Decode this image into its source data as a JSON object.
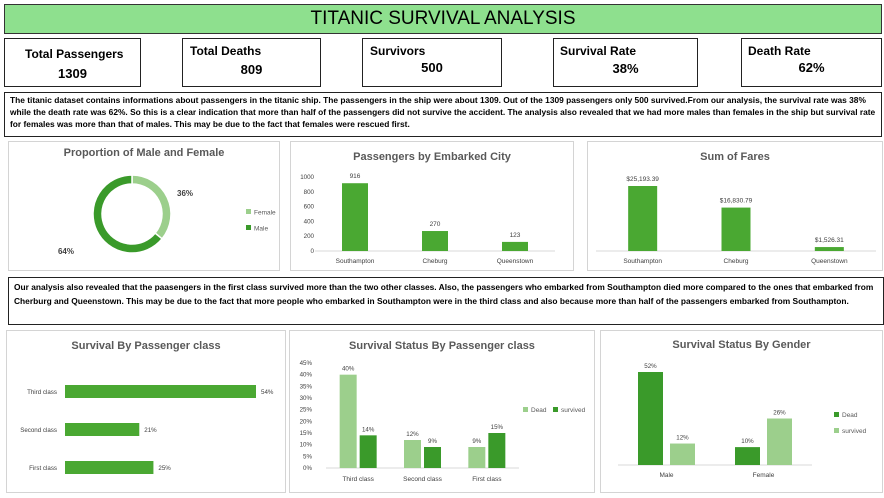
{
  "title": "TITANIC SURVIVAL ANALYSIS",
  "kpis": [
    {
      "label": "Total Passengers",
      "value": "1309"
    },
    {
      "label": "Total Deaths",
      "value": "809"
    },
    {
      "label": "Survivors",
      "value": "500"
    },
    {
      "label": "Survival Rate",
      "value": "38%"
    },
    {
      "label": "Death Rate",
      "value": "62%"
    }
  ],
  "summary1": "The titanic dataset contains informations about passengers in the titanic ship. The passengers in the ship were about 1309. Out of the 1309 passengers only 500 survived.From our analysis, the survival rate was 38% while the death rate was 62%. So this is a clear indication that more than half of the passengers did not survive the accident. The analysis also revealed that we had more males than females in the ship but survival rate for females was more than that of males. This may be due to the fact that females were rescued first.",
  "summary2": "Our analysis also revealed that the paasengers in the first class survived more than the two other classes. Also, the passengers who embarked from Southampton died more compared to the ones that embarked from Cherburg and Queenstown. This may be due to the fact that more people who embarked in Southampton were in the third class and also because more than half of the passengers embarked from Southampton.",
  "colors": {
    "dark_green": "#3a9a2a",
    "light_green": "#9ccf8c",
    "bar_green": "#4aa832",
    "title_green": "#8ee08e"
  },
  "chart_data": [
    {
      "type": "pie",
      "title": "Proportion of Male and Female",
      "categories": [
        "Female",
        "Male"
      ],
      "values": [
        36,
        64
      ],
      "value_labels": [
        "36%",
        "64%"
      ],
      "legend": "right"
    },
    {
      "type": "bar",
      "title": "Passengers by Embarked City",
      "categories": [
        "Southampton",
        "Cheburg",
        "Queenstown"
      ],
      "values": [
        916,
        270,
        123
      ],
      "value_labels": [
        "916",
        "270",
        "123"
      ],
      "yticks": [
        "0",
        "200",
        "400",
        "600",
        "800",
        "1000"
      ],
      "ylim": [
        0,
        1000
      ],
      "grid": false
    },
    {
      "type": "bar",
      "title": "Sum of Fares",
      "categories": [
        "Southampton",
        "Cheburg",
        "Queenstown"
      ],
      "values": [
        25193.39,
        16830.79,
        1526.31
      ],
      "value_labels": [
        "$25,193.39",
        "$16,830.79",
        "$1,526.31"
      ],
      "grid": false
    },
    {
      "type": "bar",
      "orientation": "horizontal",
      "title": "Survival By Passenger class",
      "categories": [
        "Third class",
        "Second class",
        "First class"
      ],
      "values": [
        54,
        21,
        25
      ],
      "value_labels": [
        "54%",
        "21%",
        "25%"
      ]
    },
    {
      "type": "bar",
      "title": "Survival Status By Passenger class",
      "categories": [
        "Third class",
        "Second class",
        "First class"
      ],
      "series": [
        {
          "name": "Dead",
          "values": [
            40,
            12,
            9
          ],
          "labels": [
            "40%",
            "12%",
            "9%"
          ]
        },
        {
          "name": "survived",
          "values": [
            14,
            9,
            15
          ],
          "labels": [
            "14%",
            "9%",
            "15%"
          ]
        }
      ],
      "yticks": [
        "0%",
        "5%",
        "10%",
        "15%",
        "20%",
        "25%",
        "30%",
        "35%",
        "40%",
        "45%"
      ],
      "ylim": [
        0,
        45
      ],
      "legend": "right"
    },
    {
      "type": "bar",
      "title": "Survival Status By Gender",
      "categories": [
        "Male",
        "Female"
      ],
      "series": [
        {
          "name": "Dead",
          "values": [
            52,
            10
          ],
          "labels": [
            "52%",
            "10%"
          ]
        },
        {
          "name": "survived",
          "values": [
            12,
            26
          ],
          "labels": [
            "12%",
            "26%"
          ]
        }
      ],
      "legend": "right"
    }
  ]
}
